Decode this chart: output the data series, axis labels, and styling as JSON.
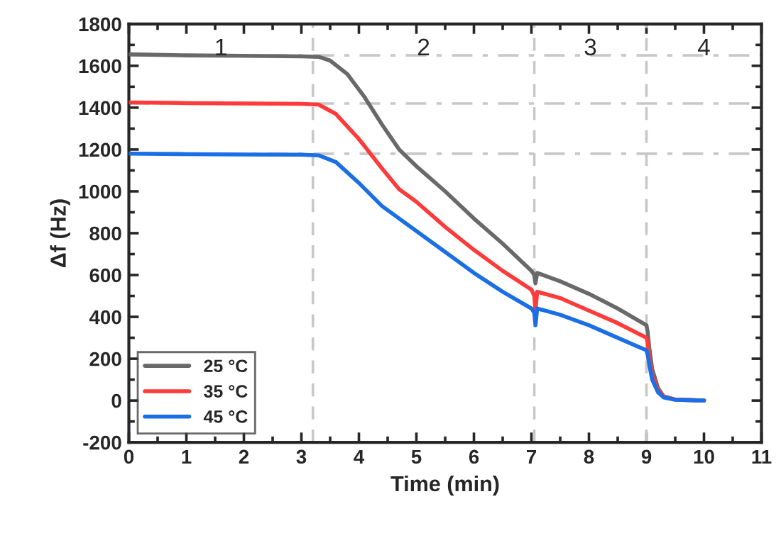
{
  "chart_data": {
    "type": "line",
    "xlabel": "Time (min)",
    "ylabel": "Δf (Hz)",
    "xlim": [
      0,
      11
    ],
    "xticks": [
      0,
      1,
      2,
      3,
      4,
      5,
      6,
      7,
      8,
      9,
      10,
      11
    ],
    "ylim": [
      -200,
      1800
    ],
    "yticks": [
      -200,
      0,
      200,
      400,
      600,
      800,
      1000,
      1200,
      1400,
      1600,
      1800
    ],
    "grid": false,
    "legend": "bottom left",
    "line_style": "solid",
    "marker": "none",
    "series": [
      {
        "name": "25 °C",
        "color": "#696969",
        "x": [
          0,
          1,
          2,
          3,
          3.3,
          3.5,
          3.8,
          4.1,
          4.4,
          4.7,
          5,
          5.5,
          6,
          6.5,
          7,
          7.05,
          7.07,
          7.1,
          7.5,
          8,
          8.5,
          9,
          9.02,
          9.05,
          9.1,
          9.2,
          9.3,
          9.5,
          10
        ],
        "values": [
          1655,
          1650,
          1648,
          1645,
          1643,
          1625,
          1560,
          1450,
          1320,
          1200,
          1120,
          1000,
          870,
          750,
          620,
          600,
          560,
          610,
          570,
          510,
          440,
          360,
          330,
          250,
          150,
          60,
          20,
          5,
          0
        ]
      },
      {
        "name": "35 °C",
        "color": "#ff3a3a",
        "x": [
          0,
          1,
          2,
          3,
          3.3,
          3.6,
          4,
          4.4,
          4.7,
          5,
          5.5,
          6,
          6.5,
          7,
          7.05,
          7.07,
          7.1,
          7.5,
          8,
          8.5,
          9,
          9.02,
          9.05,
          9.1,
          9.2,
          9.3,
          9.5,
          10
        ],
        "values": [
          1425,
          1422,
          1420,
          1418,
          1415,
          1370,
          1250,
          1110,
          1010,
          950,
          830,
          720,
          620,
          530,
          500,
          430,
          520,
          490,
          430,
          370,
          300,
          280,
          200,
          120,
          50,
          18,
          5,
          0
        ]
      },
      {
        "name": "45 °C",
        "color": "#1a6fe6",
        "x": [
          0,
          1,
          2,
          3,
          3.3,
          3.6,
          4,
          4.4,
          4.8,
          5,
          5.5,
          6,
          6.5,
          7,
          7.05,
          7.07,
          7.1,
          7.5,
          8,
          8.5,
          9,
          9.02,
          9.05,
          9.1,
          9.2,
          9.3,
          9.5,
          10
        ],
        "values": [
          1180,
          1178,
          1176,
          1175,
          1172,
          1140,
          1040,
          930,
          850,
          810,
          710,
          610,
          520,
          440,
          420,
          360,
          440,
          410,
          360,
          300,
          240,
          220,
          170,
          100,
          40,
          15,
          4,
          0
        ]
      }
    ],
    "ref_lines": [
      {
        "axis": "x",
        "value": 3.2,
        "color": "#c8c8c8",
        "line_style": "dashed"
      },
      {
        "axis": "x",
        "value": 7.05,
        "color": "#c8c8c8",
        "line_style": "dashed"
      },
      {
        "axis": "x",
        "value": 9.0,
        "color": "#c8c8c8",
        "line_style": "dashed"
      },
      {
        "axis": "y",
        "value": 1650,
        "color": "#c8c8c8",
        "line_style": "dashdot"
      },
      {
        "axis": "y",
        "value": 1420,
        "color": "#c8c8c8",
        "line_style": "dashdot"
      },
      {
        "axis": "y",
        "value": 1180,
        "color": "#c8c8c8",
        "line_style": "dashdot"
      }
    ],
    "annotations": [
      "1",
      "2",
      "3",
      "4"
    ]
  }
}
